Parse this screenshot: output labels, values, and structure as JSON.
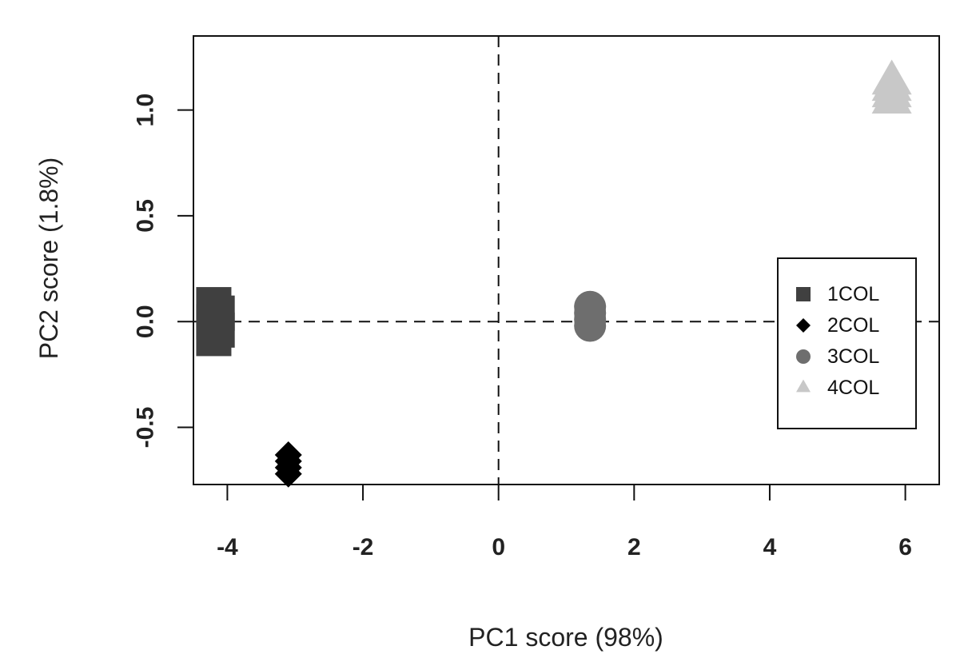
{
  "chart_data": {
    "type": "scatter",
    "title": "",
    "xlabel": "PC1 score (98%)",
    "ylabel": "PC2 score (1.8%)",
    "xlim": [
      -4.5,
      6.5
    ],
    "ylim": [
      -0.77,
      1.35
    ],
    "x_ticks": [
      -4,
      -2,
      0,
      2,
      4,
      6
    ],
    "x_tick_labels": [
      "-4",
      "-2",
      "0",
      "2",
      "4",
      "6"
    ],
    "y_ticks": [
      -0.5,
      0.0,
      0.5,
      1.0
    ],
    "y_tick_labels": [
      "-0.5",
      "0.0",
      "0.5",
      "1.0"
    ],
    "reference_lines": {
      "x": 0,
      "y": 0,
      "style": "dashed"
    },
    "grid": false,
    "legend_position": "right",
    "series": [
      {
        "name": "1COL",
        "marker": "square",
        "color": "#404040",
        "points": [
          [
            -4.2,
            0.08
          ],
          [
            -4.15,
            0.04
          ],
          [
            -4.2,
            0.0
          ],
          [
            -4.15,
            -0.04
          ],
          [
            -4.2,
            -0.08
          ]
        ]
      },
      {
        "name": "2COL",
        "marker": "diamond",
        "color": "#000000",
        "points": [
          [
            -3.1,
            -0.63
          ],
          [
            -3.1,
            -0.66
          ],
          [
            -3.1,
            -0.69
          ],
          [
            -3.1,
            -0.72
          ]
        ]
      },
      {
        "name": "3COL",
        "marker": "circle",
        "color": "#6e6e6e",
        "points": [
          [
            1.35,
            0.07
          ],
          [
            1.35,
            0.04
          ],
          [
            1.35,
            0.01
          ],
          [
            1.35,
            -0.02
          ]
        ]
      },
      {
        "name": "4COL",
        "marker": "triangle",
        "color": "#c8c8c8",
        "points": [
          [
            5.8,
            1.13
          ],
          [
            5.8,
            1.1
          ],
          [
            5.8,
            1.07
          ],
          [
            5.8,
            1.04
          ]
        ]
      }
    ]
  }
}
